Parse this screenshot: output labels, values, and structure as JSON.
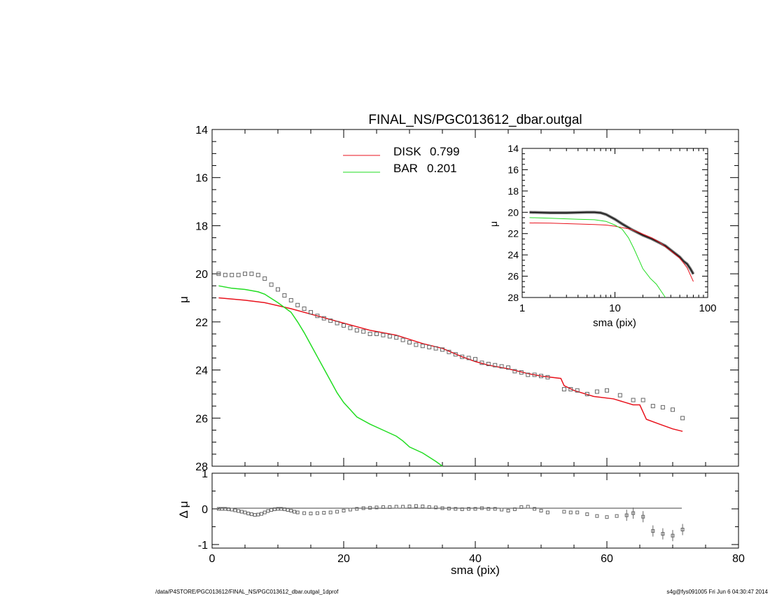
{
  "page": {
    "footer_left": "/data/P4STORE/PGC013612/FINAL_NS/PGC013612_dbar.outgal_1dprof",
    "footer_right": "s4g@fys091005  Fri Jun  6 04:30:47 2014"
  },
  "colors": {
    "disk": "#e8121c",
    "bar": "#22dd22",
    "data": "#666666",
    "axes": "#000000"
  },
  "chart_data": [
    {
      "id": "main",
      "type": "scatter",
      "title": "FINAL_NS/PGC013612_dbar.outgal",
      "xlabel": "",
      "ylabel": "μ",
      "xlim": [
        0,
        80
      ],
      "ylim": [
        28,
        14
      ],
      "y_inverted": true,
      "yticks": [
        14,
        16,
        18,
        20,
        22,
        24,
        26,
        28
      ],
      "xticks": [
        0,
        20,
        40,
        60,
        80
      ],
      "legend": {
        "placement": "top-center",
        "entries": [
          {
            "name": "DISK",
            "value": "0.799",
            "color": "#e8121c"
          },
          {
            "name": "BAR",
            "value": "0.201",
            "color": "#22dd22"
          }
        ]
      },
      "series": [
        {
          "name": "DISK",
          "kind": "line",
          "color": "#e8121c",
          "x": [
            1,
            5,
            8,
            12,
            16,
            20,
            24,
            28,
            32,
            35,
            38,
            40,
            42,
            45,
            48,
            50,
            53,
            53.5,
            55,
            58,
            61,
            64,
            65,
            66,
            68,
            70,
            71.5
          ],
          "y": [
            21.0,
            21.1,
            21.2,
            21.45,
            21.75,
            22.05,
            22.35,
            22.55,
            22.9,
            23.1,
            23.45,
            23.65,
            23.8,
            23.95,
            24.15,
            24.25,
            24.35,
            24.65,
            24.85,
            25.1,
            25.2,
            25.45,
            25.45,
            26.05,
            26.25,
            26.45,
            26.55
          ]
        },
        {
          "name": "BAR",
          "kind": "line",
          "color": "#22dd22",
          "x": [
            1,
            3,
            5,
            7,
            8,
            10,
            12,
            13,
            14,
            15,
            16,
            17,
            18,
            19,
            20,
            21,
            22,
            24,
            26,
            28,
            29,
            30,
            32,
            34,
            35
          ],
          "y": [
            20.5,
            20.6,
            20.65,
            20.75,
            20.85,
            21.2,
            21.6,
            22.0,
            22.45,
            22.95,
            23.45,
            23.95,
            24.45,
            24.95,
            25.35,
            25.65,
            25.95,
            26.25,
            26.5,
            26.75,
            26.95,
            27.2,
            27.45,
            27.8,
            28.0
          ]
        },
        {
          "name": "",
          "kind": "markers",
          "color": "#666666",
          "x": [
            1,
            2,
            3,
            4,
            5,
            6,
            7,
            8,
            9,
            10,
            11,
            12,
            13,
            14,
            15,
            16,
            17,
            18,
            19,
            20,
            21,
            22,
            23,
            24,
            25,
            26,
            27,
            28,
            29,
            30,
            31,
            32,
            33,
            34,
            35,
            36,
            37,
            38,
            39,
            40,
            41,
            42,
            43,
            44,
            45,
            46,
            47,
            48,
            49,
            50,
            51,
            53.5,
            54.5,
            55.5,
            57,
            58.5,
            60,
            62,
            64,
            65.5,
            67,
            68.5,
            70,
            71.5
          ],
          "y": [
            20.0,
            20.05,
            20.05,
            20.05,
            20.0,
            20.0,
            20.05,
            20.2,
            20.45,
            20.65,
            20.9,
            21.1,
            21.3,
            21.45,
            21.6,
            21.75,
            21.85,
            21.95,
            22.05,
            22.15,
            22.25,
            22.35,
            22.4,
            22.5,
            22.5,
            22.55,
            22.6,
            22.65,
            22.75,
            22.85,
            22.95,
            23.0,
            23.05,
            23.1,
            23.15,
            23.25,
            23.35,
            23.45,
            23.5,
            23.55,
            23.7,
            23.75,
            23.8,
            23.85,
            23.9,
            24.05,
            24.1,
            24.2,
            24.2,
            24.25,
            24.3,
            24.8,
            24.8,
            24.85,
            25.0,
            24.9,
            24.85,
            25.05,
            25.25,
            25.25,
            25.5,
            25.55,
            25.65,
            26.0
          ]
        }
      ]
    },
    {
      "id": "inset",
      "type": "line",
      "xlabel": "sma (pix)",
      "ylabel": "μ",
      "x_scale": "log",
      "xlim": [
        1,
        100
      ],
      "ylim": [
        28,
        14
      ],
      "y_inverted": true,
      "xticks": [
        1,
        10,
        100
      ],
      "yticks": [
        14,
        16,
        18,
        20,
        22,
        24,
        26,
        28
      ],
      "series": [
        {
          "name": "",
          "kind": "band",
          "color": "#555555",
          "x": [
            1.2,
            2,
            3,
            5,
            6,
            7,
            8,
            10,
            12,
            15,
            20,
            25,
            30,
            35,
            40,
            45,
            50,
            55,
            60,
            65,
            70
          ],
          "y": [
            20.0,
            20.05,
            20.05,
            20.0,
            20.0,
            20.05,
            20.2,
            20.65,
            21.1,
            21.6,
            22.15,
            22.5,
            22.85,
            23.15,
            23.55,
            23.9,
            24.2,
            24.6,
            24.85,
            25.3,
            25.8
          ]
        },
        {
          "name": "DISK",
          "kind": "line",
          "color": "#e8121c",
          "x": [
            1.2,
            2,
            4,
            6,
            8,
            10,
            12,
            15,
            20,
            25,
            30,
            40,
            50,
            60,
            70
          ],
          "y": [
            21.0,
            21.02,
            21.1,
            21.15,
            21.2,
            21.3,
            21.45,
            21.6,
            22.05,
            22.4,
            22.8,
            23.6,
            24.3,
            25.2,
            26.5
          ]
        },
        {
          "name": "BAR",
          "kind": "line",
          "color": "#22dd22",
          "x": [
            1.2,
            2,
            4,
            6,
            8,
            10,
            12,
            14,
            16,
            18,
            20,
            24,
            28,
            32,
            35
          ],
          "y": [
            20.5,
            20.55,
            20.65,
            20.7,
            20.85,
            21.2,
            21.6,
            22.4,
            23.4,
            24.4,
            25.3,
            26.2,
            26.75,
            27.5,
            28.0
          ]
        }
      ]
    },
    {
      "id": "residual",
      "type": "scatter",
      "xlabel": "sma (pix)",
      "ylabel": "Δ μ",
      "xlim": [
        0,
        80
      ],
      "ylim": [
        -1.1,
        1.0
      ],
      "xticks": [
        0,
        20,
        40,
        60,
        80
      ],
      "yticks": [
        1,
        0,
        -1
      ],
      "series": [
        {
          "name": "",
          "kind": "markers",
          "color": "#666666",
          "x": [
            1,
            1.5,
            2,
            2.5,
            3,
            3.5,
            4,
            4.5,
            5,
            5.5,
            6,
            6.5,
            7,
            7.5,
            8,
            8.5,
            9,
            9.5,
            10,
            10.5,
            11,
            11.5,
            12,
            12.5,
            13,
            14,
            15,
            16,
            17,
            18,
            19,
            20,
            21,
            22,
            23,
            24,
            25,
            26,
            27,
            28,
            29,
            30,
            31,
            32,
            33,
            34,
            35,
            36,
            37,
            38,
            39,
            40,
            41,
            42,
            43,
            44,
            45,
            46,
            47,
            48,
            49,
            50,
            51,
            53.5,
            54.5,
            55.5,
            57,
            58.5,
            60,
            61.5,
            63,
            64,
            65.5,
            67,
            68.5,
            70,
            71.5
          ],
          "y": [
            0.0,
            0.0,
            0.0,
            -0.01,
            -0.02,
            -0.04,
            -0.06,
            -0.08,
            -0.1,
            -0.13,
            -0.15,
            -0.17,
            -0.16,
            -0.14,
            -0.1,
            -0.06,
            -0.03,
            -0.01,
            0.0,
            0.0,
            -0.01,
            -0.03,
            -0.05,
            -0.08,
            -0.1,
            -0.12,
            -0.13,
            -0.12,
            -0.11,
            -0.1,
            -0.08,
            -0.05,
            -0.02,
            0.0,
            0.02,
            0.03,
            0.04,
            0.05,
            0.05,
            0.06,
            0.06,
            0.07,
            0.08,
            0.07,
            0.05,
            0.04,
            0.02,
            0.01,
            0.0,
            -0.01,
            0.0,
            0.0,
            0.02,
            0.0,
            0.0,
            -0.02,
            -0.05,
            -0.01,
            0.05,
            0.06,
            0.0,
            -0.05,
            -0.1,
            -0.08,
            -0.1,
            -0.1,
            -0.15,
            -0.2,
            -0.23,
            -0.2,
            -0.18,
            -0.12,
            -0.22,
            -0.62,
            -0.7,
            -0.75,
            -0.58
          ]
        }
      ]
    }
  ]
}
